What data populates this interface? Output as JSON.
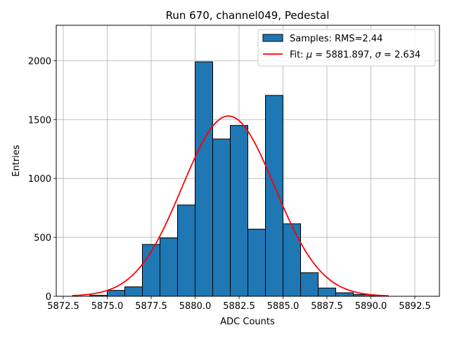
{
  "chart_data": {
    "type": "histogram",
    "title": "Run 670, channel049, Pedestal",
    "xlabel": "ADC Counts",
    "ylabel": "Entries",
    "xlim": [
      5872.1,
      5893.9
    ],
    "ylim": [
      0,
      2300
    ],
    "x_ticks": [
      {
        "value": 5872.5,
        "label": "5872.5"
      },
      {
        "value": 5875.0,
        "label": "5875.0"
      },
      {
        "value": 5877.5,
        "label": "5877.5"
      },
      {
        "value": 5880.0,
        "label": "5880.0"
      },
      {
        "value": 5882.5,
        "label": "5882.5"
      },
      {
        "value": 5885.0,
        "label": "5885.0"
      },
      {
        "value": 5887.5,
        "label": "5887.5"
      },
      {
        "value": 5890.0,
        "label": "5890.0"
      },
      {
        "value": 5892.5,
        "label": "5892.5"
      }
    ],
    "y_ticks": [
      {
        "value": 0,
        "label": "0"
      },
      {
        "value": 500,
        "label": "500"
      },
      {
        "value": 1000,
        "label": "1000"
      },
      {
        "value": 1500,
        "label": "1500"
      },
      {
        "value": 2000,
        "label": "2000"
      }
    ],
    "grid": true,
    "legend_position": "top-right",
    "bins": [
      {
        "x0": 5873,
        "x1": 5874,
        "count": 0
      },
      {
        "x0": 5874,
        "x1": 5875,
        "count": 8
      },
      {
        "x0": 5875,
        "x1": 5876,
        "count": 50
      },
      {
        "x0": 5876,
        "x1": 5877,
        "count": 80
      },
      {
        "x0": 5877,
        "x1": 5878,
        "count": 440
      },
      {
        "x0": 5878,
        "x1": 5879,
        "count": 495
      },
      {
        "x0": 5879,
        "x1": 5880,
        "count": 775
      },
      {
        "x0": 5880,
        "x1": 5881,
        "count": 1990
      },
      {
        "x0": 5881,
        "x1": 5882,
        "count": 1335
      },
      {
        "x0": 5882,
        "x1": 5883,
        "count": 1450
      },
      {
        "x0": 5883,
        "x1": 5884,
        "count": 570
      },
      {
        "x0": 5884,
        "x1": 5885,
        "count": 1705
      },
      {
        "x0": 5885,
        "x1": 5886,
        "count": 615
      },
      {
        "x0": 5886,
        "x1": 5887,
        "count": 200
      },
      {
        "x0": 5887,
        "x1": 5888,
        "count": 70
      },
      {
        "x0": 5888,
        "x1": 5889,
        "count": 30
      },
      {
        "x0": 5889,
        "x1": 5890,
        "count": 15
      },
      {
        "x0": 5890,
        "x1": 5891,
        "count": 3
      },
      {
        "x0": 5891,
        "x1": 5892,
        "count": 0
      },
      {
        "x0": 5892,
        "x1": 5893,
        "count": 0
      }
    ],
    "fit": {
      "mu": 5881.897,
      "sigma": 2.634,
      "amplitude": 1530,
      "x_range": [
        5873,
        5891
      ]
    },
    "series": [
      {
        "name": "Samples: RMS=2.44",
        "kind": "histogram",
        "color": "#1f77b4",
        "edge_color": "#000000"
      },
      {
        "name_prefix": "Fit: ",
        "mu_label": "5881.897",
        "sigma_label": "2.634",
        "kind": "line",
        "color": "#ff0000"
      }
    ]
  }
}
